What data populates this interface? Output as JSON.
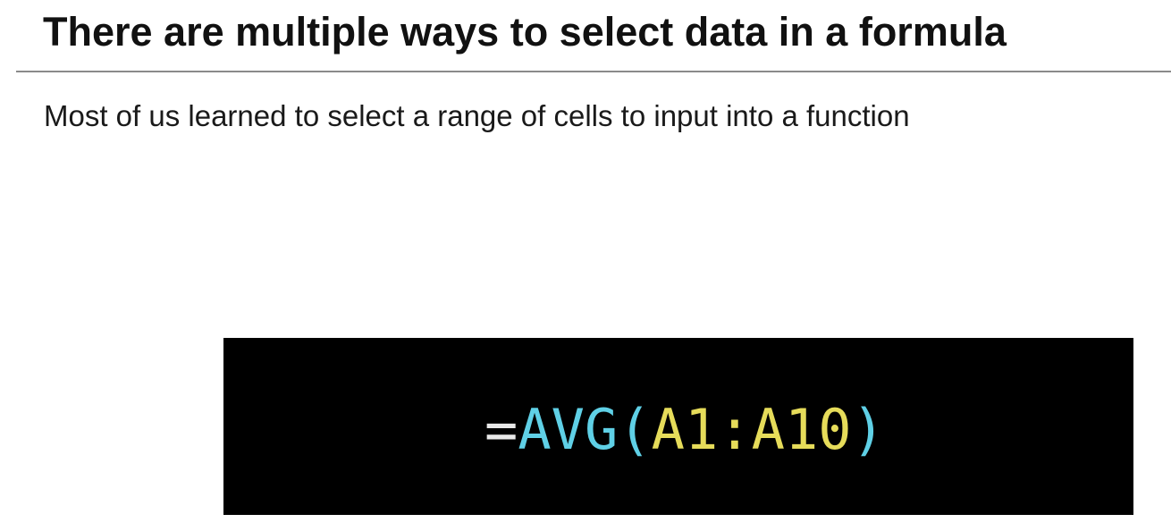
{
  "slide": {
    "title": "There are multiple ways to select data in a formula",
    "subtitle": "Most of us learned to select a range of cells to input into a function"
  },
  "code": {
    "equals": "=",
    "function_name": "AVG",
    "open_paren": "(",
    "argument": "A1:A10",
    "close_paren": ")"
  },
  "colors": {
    "panel_background": "#000000",
    "function_color": "#5fd0e6",
    "argument_color": "#e6dc5a",
    "equals_color": "#e8e8e8"
  }
}
